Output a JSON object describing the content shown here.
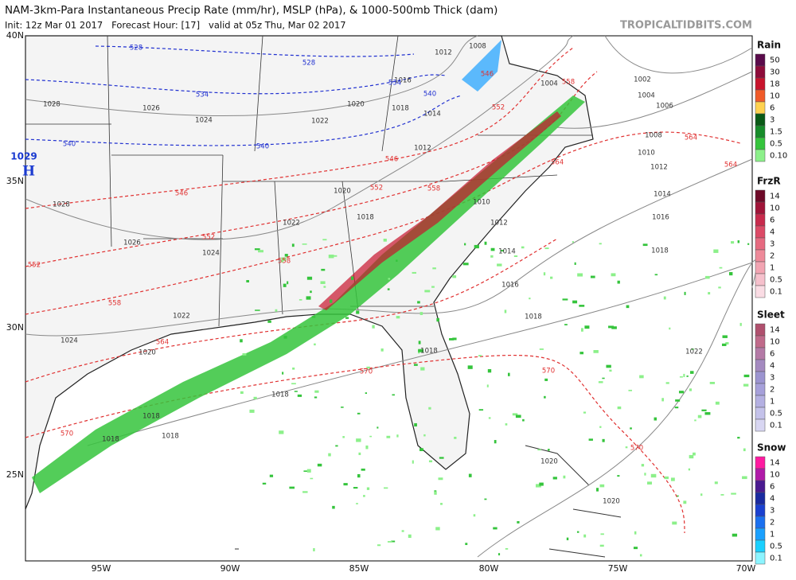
{
  "header": {
    "title": "NAM-3km-Para Instantaneous Precip Rate (mm/hr), MSLP (hPa), & 1000-500mb Thick (dam)",
    "subtitle": "Init: 12z Mar 01 2017   Forecast Hour: [17]   valid at 05z Thu, Mar 02 2017",
    "brand": "TROPICALTIDBITS.COM"
  },
  "map": {
    "lat_labels": [
      "40N",
      "35N",
      "30N",
      "25N"
    ],
    "lon_labels": [
      "95W",
      "90W",
      "85W",
      "80W",
      "75W",
      "70W"
    ],
    "high": {
      "pressure": "1029",
      "letter": "H"
    },
    "isobar_labels": [
      1028,
      1026,
      1024,
      1022,
      1020,
      1018,
      1016,
      1012,
      1008,
      1014,
      1012,
      1004,
      1002,
      1004,
      1006,
      1008,
      1010,
      1012,
      1014,
      1016,
      1018,
      1010,
      1012,
      1014,
      1016,
      1018,
      1020,
      1018,
      1022,
      1024,
      1026,
      1028,
      1022,
      1024,
      1020,
      1018,
      1018,
      1018,
      1018,
      1018,
      1022,
      1020,
      1020
    ],
    "thickness_labels_red": [
      546,
      546,
      546,
      552,
      552,
      552,
      552,
      558,
      558,
      558,
      558,
      564,
      564,
      564,
      564,
      570,
      570,
      570,
      570
    ],
    "thickness_labels_blue": [
      528,
      528,
      534,
      534,
      540,
      540,
      540
    ]
  },
  "legends": [
    {
      "title": "Rain",
      "ticks": [
        50,
        30,
        18,
        10,
        6,
        3,
        1.5,
        0.5,
        {
          "value": 0.1,
          "label": "0.10"
        }
      ],
      "colors": [
        "#5a0b4b",
        "#8e0c3a",
        "#c8142c",
        "#f05a28",
        "#ffd250",
        "#0a5a16",
        "#178c2a",
        "#35c43c",
        "#8cf08a"
      ]
    },
    {
      "title": "FrzR",
      "ticks": [
        14,
        10,
        6,
        4,
        3,
        2,
        1,
        0.5,
        0.1
      ],
      "colors": [
        "#6e0a28",
        "#a01438",
        "#c82a4c",
        "#dc4a66",
        "#e66a80",
        "#ee8a9a",
        "#f2a4b2",
        "#f6c0cc",
        "#fadce4"
      ]
    },
    {
      "title": "Sleet",
      "ticks": [
        14,
        10,
        6,
        4,
        3,
        2,
        1,
        0.5,
        0.1
      ],
      "colors": [
        "#b0506e",
        "#c06a8a",
        "#b47aa6",
        "#a48ac0",
        "#9c94d0",
        "#a6a0da",
        "#b4b0e2",
        "#c4c2ea",
        "#d8d6f2"
      ]
    },
    {
      "title": "Snow",
      "ticks": [
        14,
        10,
        6,
        4,
        3,
        2,
        1,
        0.5,
        0.1
      ],
      "colors": [
        "#ff1aa0",
        "#b01aa8",
        "#4a1a90",
        "#1a2aa0",
        "#1a40d0",
        "#1a70f0",
        "#1aa0ff",
        "#1ad0ff",
        "#8cf4ff"
      ]
    }
  ]
}
